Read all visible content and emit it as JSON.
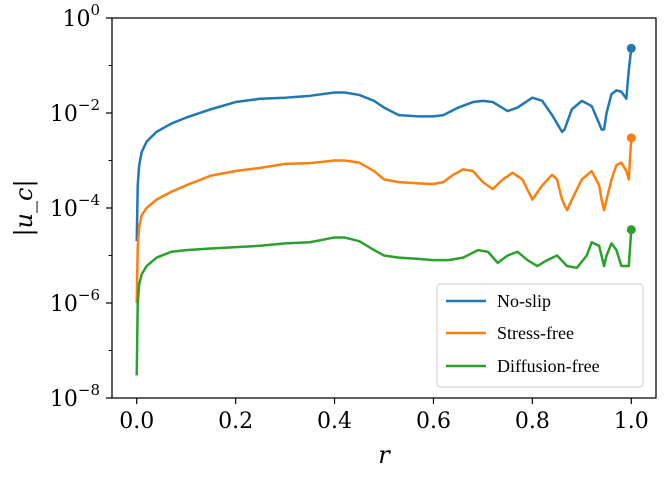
{
  "chart_data": {
    "type": "line",
    "xlabel": "r",
    "ylabel": "|u_c|",
    "xlim": [
      -0.05,
      1.05
    ],
    "ylim": [
      1e-08,
      1
    ],
    "yscale": "log",
    "x_ticks": [
      "0.0",
      "0.2",
      "0.4",
      "0.6",
      "0.8",
      "1.0"
    ],
    "x_tick_values": [
      0.0,
      0.2,
      0.4,
      0.6,
      0.8,
      1.0
    ],
    "y_ticks": [
      {
        "base": "10",
        "exp": "0",
        "value": 1
      },
      {
        "base": "10",
        "exp": "−2",
        "value": 0.01
      },
      {
        "base": "10",
        "exp": "−4",
        "value": 0.0001
      },
      {
        "base": "10",
        "exp": "−6",
        "value": 1e-06
      },
      {
        "base": "10",
        "exp": "−8",
        "value": 1e-08
      }
    ],
    "legend_position": "lower-right",
    "grid": false,
    "series": [
      {
        "name": "No-slip",
        "color": "#1f77b4",
        "x": [
          0.0,
          0.002,
          0.005,
          0.01,
          0.02,
          0.04,
          0.07,
          0.1,
          0.15,
          0.2,
          0.25,
          0.3,
          0.35,
          0.4,
          0.42,
          0.45,
          0.48,
          0.5,
          0.53,
          0.57,
          0.6,
          0.62,
          0.65,
          0.68,
          0.7,
          0.72,
          0.75,
          0.77,
          0.8,
          0.82,
          0.84,
          0.86,
          0.865,
          0.88,
          0.9,
          0.92,
          0.935,
          0.94,
          0.945,
          0.95,
          0.96,
          0.97,
          0.98,
          0.99,
          0.995,
          1.0
        ],
        "y": [
          2e-05,
          0.0003,
          0.0008,
          0.0015,
          0.0025,
          0.004,
          0.006,
          0.008,
          0.012,
          0.017,
          0.02,
          0.021,
          0.023,
          0.027,
          0.027,
          0.024,
          0.018,
          0.013,
          0.009,
          0.0085,
          0.0085,
          0.009,
          0.013,
          0.017,
          0.018,
          0.017,
          0.011,
          0.013,
          0.021,
          0.018,
          0.009,
          0.004,
          0.0045,
          0.012,
          0.018,
          0.014,
          0.006,
          0.0045,
          0.0045,
          0.01,
          0.025,
          0.03,
          0.028,
          0.02,
          0.08,
          0.23
        ]
      },
      {
        "name": "Stress-free",
        "color": "#ff7f0e",
        "x": [
          0.0,
          0.002,
          0.005,
          0.01,
          0.02,
          0.04,
          0.07,
          0.1,
          0.15,
          0.2,
          0.25,
          0.3,
          0.35,
          0.4,
          0.42,
          0.45,
          0.48,
          0.5,
          0.53,
          0.57,
          0.6,
          0.62,
          0.64,
          0.66,
          0.68,
          0.7,
          0.72,
          0.74,
          0.76,
          0.78,
          0.8,
          0.82,
          0.84,
          0.85,
          0.86,
          0.87,
          0.88,
          0.9,
          0.92,
          0.935,
          0.94,
          0.945,
          0.95,
          0.96,
          0.97,
          0.98,
          0.99,
          0.995,
          1.0
        ],
        "y": [
          1e-06,
          1.5e-05,
          4e-05,
          7e-05,
          0.0001,
          0.00015,
          0.00022,
          0.0003,
          0.00048,
          0.0006,
          0.0007,
          0.00085,
          0.00088,
          0.001,
          0.001,
          0.0009,
          0.0006,
          0.0004,
          0.00035,
          0.00033,
          0.00032,
          0.00035,
          0.0005,
          0.00065,
          0.0006,
          0.00035,
          0.00025,
          0.0004,
          0.00055,
          0.0004,
          0.00015,
          0.0003,
          0.0005,
          0.0004,
          0.00015,
          9e-05,
          0.00015,
          0.0004,
          0.0006,
          0.0003,
          0.00015,
          9e-05,
          0.00015,
          0.0004,
          0.0008,
          0.0009,
          0.0006,
          0.0004,
          0.003
        ]
      },
      {
        "name": "Diffusion-free",
        "color": "#2ca02c",
        "x": [
          0.0,
          0.002,
          0.005,
          0.01,
          0.02,
          0.04,
          0.07,
          0.1,
          0.15,
          0.2,
          0.25,
          0.3,
          0.35,
          0.4,
          0.42,
          0.45,
          0.48,
          0.5,
          0.53,
          0.57,
          0.6,
          0.63,
          0.66,
          0.69,
          0.71,
          0.73,
          0.75,
          0.77,
          0.79,
          0.81,
          0.83,
          0.85,
          0.87,
          0.89,
          0.91,
          0.92,
          0.935,
          0.945,
          0.95,
          0.96,
          0.97,
          0.98,
          0.985,
          0.99,
          0.995,
          1.0
        ],
        "y": [
          3e-08,
          1e-06,
          2.5e-06,
          4e-06,
          6e-06,
          9e-06,
          1.2e-05,
          1.3e-05,
          1.4e-05,
          1.5e-05,
          1.6e-05,
          1.8e-05,
          1.9e-05,
          2.4e-05,
          2.4e-05,
          2e-05,
          1.3e-05,
          1e-05,
          9e-06,
          8.5e-06,
          8e-06,
          8e-06,
          9e-06,
          1.3e-05,
          1.2e-05,
          7e-06,
          1e-05,
          1.2e-05,
          8e-06,
          6e-06,
          8e-06,
          1e-05,
          6e-06,
          5.5e-06,
          1e-05,
          1.9e-05,
          1.6e-05,
          6e-06,
          1e-05,
          1.8e-05,
          1.3e-05,
          6e-06,
          6e-06,
          6e-06,
          6e-06,
          3.5e-05
        ]
      }
    ]
  }
}
